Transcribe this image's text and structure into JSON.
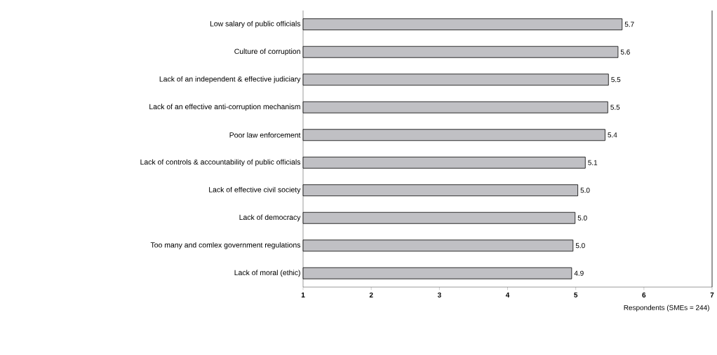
{
  "chart_data": {
    "type": "bar",
    "orientation": "horizontal",
    "xlabel": "Respondents (SMEs = 244)",
    "categories": [
      "Low salary of public officials",
      "Culture of corruption",
      "Lack of an independent & effective judiciary",
      "Lack of an effective anti-corruption mechanism",
      "Poor law enforcement",
      "Lack of controls & accountability of public officials",
      "Lack of effective civil society",
      "Lack of democracy",
      "Too many and comlex government regulations",
      "Lack of moral (ethic)"
    ],
    "values": [
      5.68,
      5.62,
      5.48,
      5.47,
      5.43,
      5.14,
      5.03,
      4.99,
      4.96,
      4.94
    ],
    "value_labels": [
      "5.7",
      "5.6",
      "5.5",
      "5.5",
      "5.4",
      "5.1",
      "5.0",
      "5.0",
      "5.0",
      "4.9"
    ],
    "color": "#c0c0c4",
    "xlim": [
      1,
      7
    ],
    "xticks": [
      1,
      2,
      3,
      4,
      5,
      6,
      7
    ]
  }
}
